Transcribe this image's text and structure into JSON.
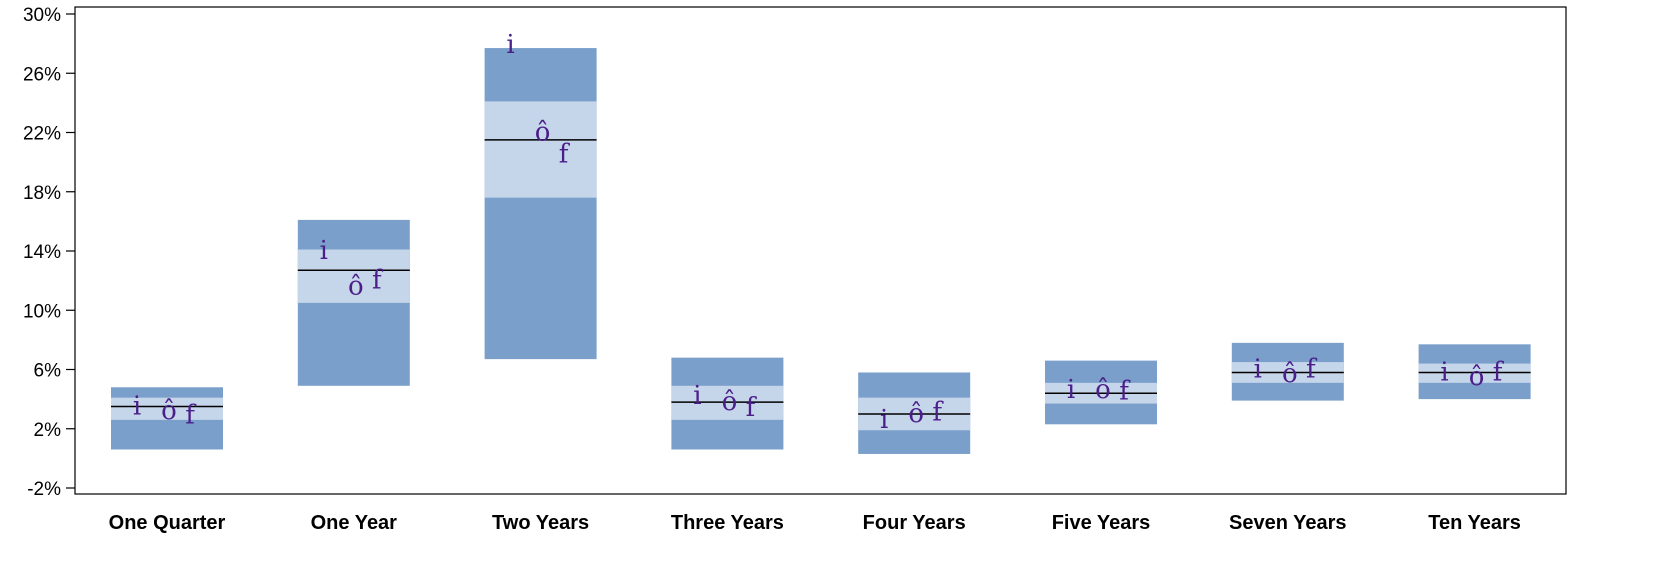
{
  "chart_data": {
    "type": "floating-range-bar",
    "title": "",
    "xlabel": "",
    "ylabel": "",
    "ylim": [
      -2,
      30
    ],
    "yticks": [
      -2,
      2,
      6,
      10,
      14,
      18,
      22,
      26,
      30
    ],
    "ytick_labels": [
      "-2%",
      "2%",
      "6%",
      "10%",
      "14%",
      "18%",
      "22%",
      "26%",
      "30%"
    ],
    "grid": false,
    "legend": "none",
    "colors": {
      "outer_range": "#7a9fcb",
      "inner_range": "#c6d6ea",
      "median_line": "#000000",
      "markers": "#4b1f8a"
    },
    "marker_symbols": [
      "i",
      "ô",
      "f"
    ],
    "categories": [
      "One Quarter",
      "One Year",
      "Two Years",
      "Three Years",
      "Four Years",
      "Five Years",
      "Seven Years",
      "Ten Years"
    ],
    "series": [
      {
        "outer_low": 0.6,
        "outer_high": 4.8,
        "inner_low": 2.6,
        "inner_high": 4.1,
        "median": 3.5,
        "i": 3.5,
        "o": 3.2,
        "f": 2.9
      },
      {
        "outer_low": 4.9,
        "outer_high": 16.1,
        "inner_low": 10.5,
        "inner_high": 14.1,
        "median": 12.7,
        "i": 14.0,
        "o": 11.6,
        "f": 12.0
      },
      {
        "outer_low": 6.7,
        "outer_high": 27.7,
        "inner_low": 17.6,
        "inner_high": 24.1,
        "median": 21.5,
        "i": 27.9,
        "o": 22.0,
        "f": 20.5
      },
      {
        "outer_low": 0.6,
        "outer_high": 6.8,
        "inner_low": 2.6,
        "inner_high": 4.9,
        "median": 3.8,
        "i": 4.2,
        "o": 3.8,
        "f": 3.4
      },
      {
        "outer_low": 0.3,
        "outer_high": 5.8,
        "inner_low": 1.9,
        "inner_high": 4.1,
        "median": 3.0,
        "i": 2.6,
        "o": 3.0,
        "f": 3.1
      },
      {
        "outer_low": 2.3,
        "outer_high": 6.6,
        "inner_low": 3.7,
        "inner_high": 5.1,
        "median": 4.4,
        "i": 4.6,
        "o": 4.6,
        "f": 4.5
      },
      {
        "outer_low": 3.9,
        "outer_high": 7.8,
        "inner_low": 5.1,
        "inner_high": 6.5,
        "median": 5.8,
        "i": 6.0,
        "o": 5.7,
        "f": 6.0
      },
      {
        "outer_low": 4.0,
        "outer_high": 7.7,
        "inner_low": 5.1,
        "inner_high": 6.4,
        "median": 5.8,
        "i": 5.8,
        "o": 5.5,
        "f": 5.8
      }
    ]
  }
}
